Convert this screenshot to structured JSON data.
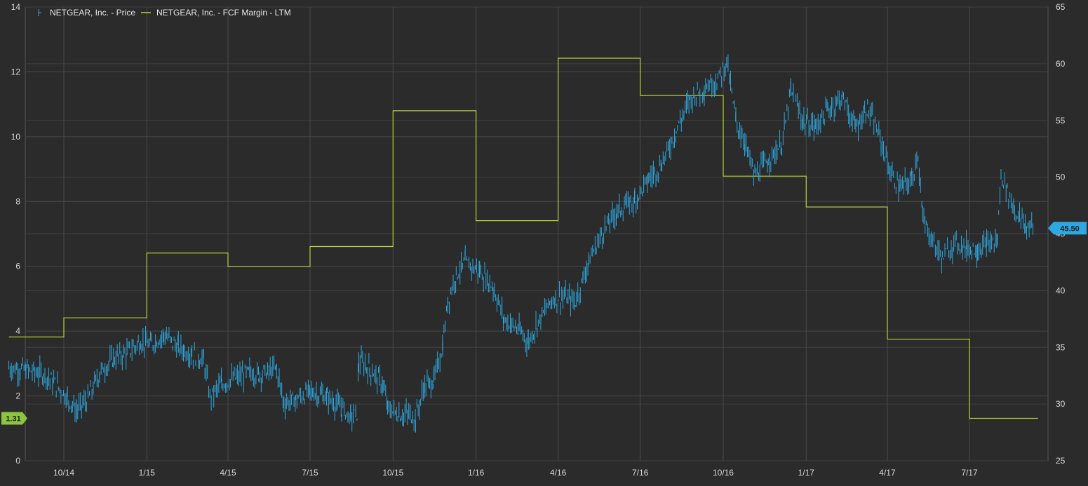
{
  "chart_data": {
    "type": "line",
    "legend": [
      {
        "label": "NETGEAR, Inc. - Price",
        "color": "#2ea8e0",
        "marker": "ohlc-bar"
      },
      {
        "label": "NETGEAR, Inc. - FCF Margin - LTM",
        "color": "#b5d334",
        "marker": "line"
      }
    ],
    "legend_position": "top-left",
    "grid": true,
    "x_ticks": [
      "10/14",
      "1/15",
      "4/15",
      "7/15",
      "10/15",
      "1/16",
      "4/16",
      "7/16",
      "10/16",
      "1/17",
      "4/17",
      "7/17"
    ],
    "left_axis": {
      "min": 0,
      "max": 14,
      "ticks": [
        0,
        2,
        4,
        6,
        8,
        10,
        12,
        14
      ],
      "series": "NETGEAR, Inc. - FCF Margin - LTM"
    },
    "right_axis": {
      "min": 25,
      "max": 65,
      "ticks": [
        25,
        30,
        35,
        40,
        45,
        50,
        55,
        60,
        65
      ],
      "series": "NETGEAR, Inc. - Price"
    },
    "last_value_badges": [
      {
        "text": "1.31",
        "axis": "left",
        "value": 1.31,
        "color": "#8cc63f"
      },
      {
        "text": "45.50",
        "axis": "right",
        "value": 45.5,
        "color": "#2ea8e0"
      }
    ],
    "series": [
      {
        "name": "NETGEAR, Inc. - FCF Margin - LTM",
        "axis": "left",
        "style": "step",
        "color": "#b5d334",
        "points": [
          [
            "2014-08-01",
            3.82
          ],
          [
            "2014-10-01",
            4.41
          ],
          [
            "2015-01-01",
            6.41
          ],
          [
            "2015-04-01",
            5.99
          ],
          [
            "2015-07-01",
            6.61
          ],
          [
            "2015-10-01",
            10.8
          ],
          [
            "2016-01-01",
            7.41
          ],
          [
            "2016-04-01",
            12.42
          ],
          [
            "2016-07-01",
            11.27
          ],
          [
            "2016-10-01",
            8.78
          ],
          [
            "2017-01-01",
            7.83
          ],
          [
            "2017-04-01",
            3.75
          ],
          [
            "2017-07-01",
            1.31
          ],
          [
            "2017-09-15",
            1.31
          ]
        ]
      },
      {
        "name": "NETGEAR, Inc. - Price",
        "axis": "right",
        "style": "ohlc",
        "color": "#2ea8e0",
        "points": [
          [
            "2014-08-01",
            33.2
          ],
          [
            "2014-08-20",
            33.0
          ],
          [
            "2014-09-10",
            32.6
          ],
          [
            "2014-09-25",
            31.5
          ],
          [
            "2014-10-05",
            30.6
          ],
          [
            "2014-10-15",
            29.4
          ],
          [
            "2014-10-28",
            30.5
          ],
          [
            "2014-11-10",
            32.8
          ],
          [
            "2014-11-25",
            34.0
          ],
          [
            "2014-12-10",
            34.5
          ],
          [
            "2014-12-25",
            35.5
          ],
          [
            "2015-01-05",
            35.2
          ],
          [
            "2015-01-20",
            36.1
          ],
          [
            "2015-02-05",
            35.0
          ],
          [
            "2015-02-20",
            34.4
          ],
          [
            "2015-03-05",
            33.9
          ],
          [
            "2015-03-12",
            30.6
          ],
          [
            "2015-03-25",
            31.8
          ],
          [
            "2015-04-10",
            32.3
          ],
          [
            "2015-04-25",
            32.8
          ],
          [
            "2015-05-05",
            32.6
          ],
          [
            "2015-05-15",
            32.9
          ],
          [
            "2015-05-25",
            33.1
          ],
          [
            "2015-06-02",
            30.1
          ],
          [
            "2015-06-15",
            30.4
          ],
          [
            "2015-07-01",
            31.1
          ],
          [
            "2015-07-20",
            30.6
          ],
          [
            "2015-08-05",
            29.6
          ],
          [
            "2015-08-15",
            28.9
          ],
          [
            "2015-08-22",
            29.2
          ],
          [
            "2015-08-24",
            33.8
          ],
          [
            "2015-09-05",
            33.1
          ],
          [
            "2015-09-20",
            31.7
          ],
          [
            "2015-09-25",
            29.6
          ],
          [
            "2015-10-10",
            29.0
          ],
          [
            "2015-10-20",
            29.1
          ],
          [
            "2015-10-26",
            28.8
          ],
          [
            "2015-11-05",
            31.6
          ],
          [
            "2015-11-15",
            32.0
          ],
          [
            "2015-11-25",
            35.1
          ],
          [
            "2015-12-01",
            39.2
          ],
          [
            "2015-12-10",
            41.4
          ],
          [
            "2015-12-20",
            42.5
          ],
          [
            "2016-01-05",
            41.7
          ],
          [
            "2016-01-20",
            40.3
          ],
          [
            "2016-02-01",
            37.5
          ],
          [
            "2016-02-15",
            36.7
          ],
          [
            "2016-02-28",
            35.5
          ],
          [
            "2016-03-10",
            37.3
          ],
          [
            "2016-03-25",
            39.2
          ],
          [
            "2016-04-05",
            39.5
          ],
          [
            "2016-04-20",
            39.0
          ],
          [
            "2016-05-05",
            42.6
          ],
          [
            "2016-05-20",
            45.1
          ],
          [
            "2016-06-05",
            47.0
          ],
          [
            "2016-06-25",
            48.0
          ],
          [
            "2016-07-10",
            49.8
          ],
          [
            "2016-07-25",
            51.2
          ],
          [
            "2016-08-10",
            54.1
          ],
          [
            "2016-08-25",
            56.9
          ],
          [
            "2016-09-10",
            57.9
          ],
          [
            "2016-09-25",
            58.6
          ],
          [
            "2016-10-05",
            60.2
          ],
          [
            "2016-10-15",
            55.0
          ],
          [
            "2016-10-25",
            53.0
          ],
          [
            "2016-11-05",
            50.1
          ],
          [
            "2016-11-20",
            51.5
          ],
          [
            "2016-12-05",
            52.9
          ],
          [
            "2016-12-15",
            57.6
          ],
          [
            "2016-12-28",
            55.0
          ],
          [
            "2017-01-10",
            54.4
          ],
          [
            "2017-01-25",
            55.9
          ],
          [
            "2017-02-10",
            57.1
          ],
          [
            "2017-02-25",
            54.3
          ],
          [
            "2017-03-10",
            56.1
          ],
          [
            "2017-03-25",
            53.2
          ],
          [
            "2017-04-05",
            50.2
          ],
          [
            "2017-04-15",
            49.0
          ],
          [
            "2017-04-28",
            49.8
          ],
          [
            "2017-05-05",
            52.2
          ],
          [
            "2017-05-10",
            46.3
          ],
          [
            "2017-05-20",
            44.6
          ],
          [
            "2017-06-01",
            42.8
          ],
          [
            "2017-06-15",
            44.3
          ],
          [
            "2017-06-28",
            43.8
          ],
          [
            "2017-07-10",
            43.6
          ],
          [
            "2017-07-20",
            44.0
          ],
          [
            "2017-08-01",
            44.4
          ],
          [
            "2017-08-05",
            50.3
          ],
          [
            "2017-08-20",
            47.1
          ],
          [
            "2017-09-01",
            45.7
          ],
          [
            "2017-09-10",
            45.5
          ]
        ]
      }
    ]
  }
}
